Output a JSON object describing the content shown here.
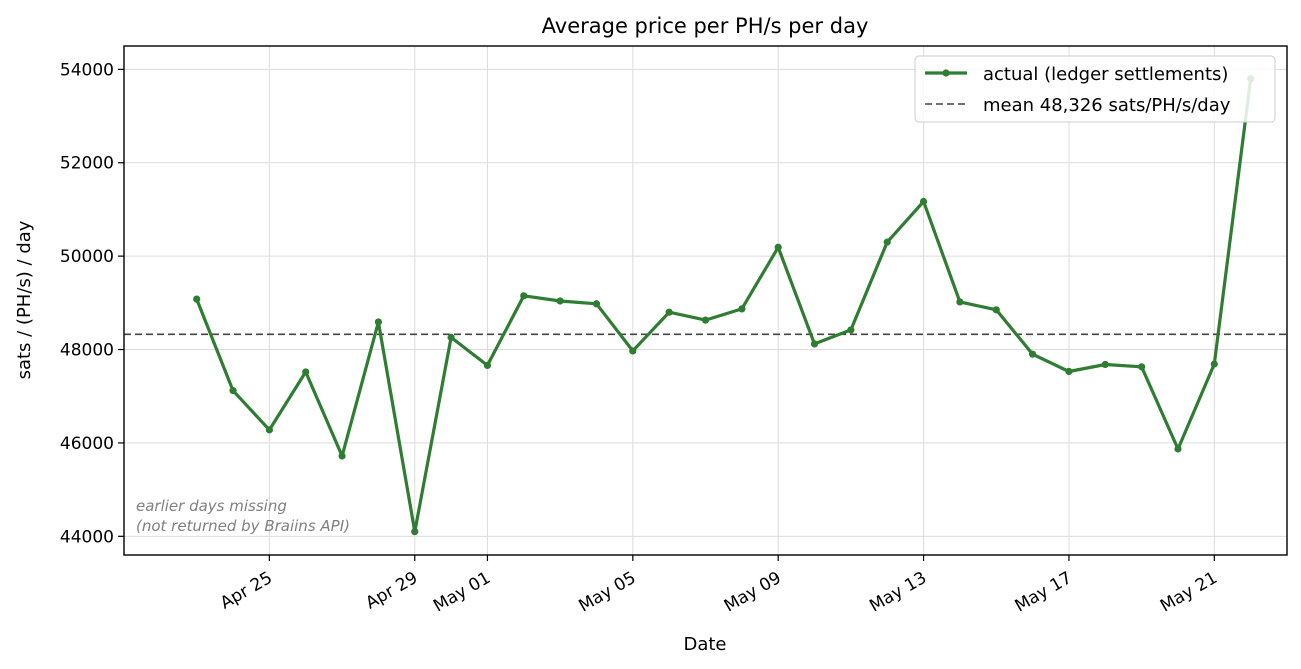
{
  "chart_data": {
    "type": "line",
    "title": "Average price per PH/s per day",
    "xlabel": "Date",
    "ylabel": "sats / (PH/s) / day",
    "ylim": [
      43600,
      54500
    ],
    "xlim": [
      "2026-04-21",
      "2026-05-23"
    ],
    "grid": true,
    "legend_placement": "top-right",
    "colors": {
      "series": "#2e7d32",
      "mean": "#444444",
      "annotation": "#808080"
    },
    "y_ticks": [
      44000,
      46000,
      48000,
      50000,
      52000,
      54000
    ],
    "x_ticks": [
      {
        "date": "2026-04-25",
        "label": "Apr 25"
      },
      {
        "date": "2026-04-29",
        "label": "Apr 29"
      },
      {
        "date": "2026-05-01",
        "label": "May 01"
      },
      {
        "date": "2026-05-05",
        "label": "May 05"
      },
      {
        "date": "2026-05-09",
        "label": "May 09"
      },
      {
        "date": "2026-05-13",
        "label": "May 13"
      },
      {
        "date": "2026-05-17",
        "label": "May 17"
      },
      {
        "date": "2026-05-21",
        "label": "May 21"
      }
    ],
    "series": [
      {
        "name": "actual (ledger settlements)",
        "points": [
          {
            "x": "2026-04-23",
            "y": 49080
          },
          {
            "x": "2026-04-24",
            "y": 47120
          },
          {
            "x": "2026-04-25",
            "y": 46280
          },
          {
            "x": "2026-04-26",
            "y": 47520
          },
          {
            "x": "2026-04-27",
            "y": 45720
          },
          {
            "x": "2026-04-28",
            "y": 48590
          },
          {
            "x": "2026-04-29",
            "y": 44100
          },
          {
            "x": "2026-04-30",
            "y": 48260
          },
          {
            "x": "2026-05-01",
            "y": 47660
          },
          {
            "x": "2026-05-02",
            "y": 49150
          },
          {
            "x": "2026-05-03",
            "y": 49040
          },
          {
            "x": "2026-05-04",
            "y": 48980
          },
          {
            "x": "2026-05-05",
            "y": 47970
          },
          {
            "x": "2026-05-06",
            "y": 48800
          },
          {
            "x": "2026-05-07",
            "y": 48630
          },
          {
            "x": "2026-05-08",
            "y": 48870
          },
          {
            "x": "2026-05-09",
            "y": 50190
          },
          {
            "x": "2026-05-10",
            "y": 48120
          },
          {
            "x": "2026-05-11",
            "y": 48420
          },
          {
            "x": "2026-05-12",
            "y": 50300
          },
          {
            "x": "2026-05-13",
            "y": 51170
          },
          {
            "x": "2026-05-14",
            "y": 49020
          },
          {
            "x": "2026-05-15",
            "y": 48850
          },
          {
            "x": "2026-05-16",
            "y": 47900
          },
          {
            "x": "2026-05-17",
            "y": 47530
          },
          {
            "x": "2026-05-18",
            "y": 47680
          },
          {
            "x": "2026-05-19",
            "y": 47630
          },
          {
            "x": "2026-05-20",
            "y": 45870
          },
          {
            "x": "2026-05-21",
            "y": 47690
          },
          {
            "x": "2026-05-22",
            "y": 53800
          }
        ]
      }
    ],
    "mean": {
      "value": 48326,
      "label": "mean 48,326 sats/PH/s/day"
    },
    "annotation": {
      "lines": [
        "earlier days missing",
        "(not returned by Braiins API)"
      ]
    }
  }
}
